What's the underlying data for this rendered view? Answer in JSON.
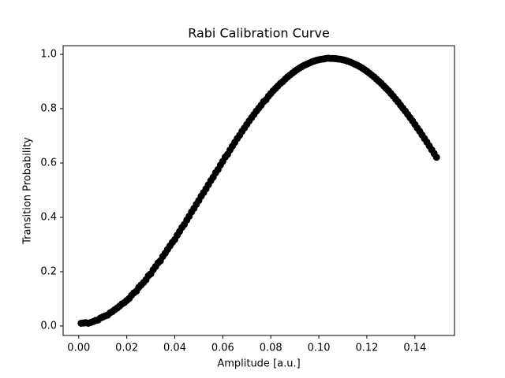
{
  "chart_data": {
    "type": "scatter",
    "title": "Rabi Calibration Curve",
    "xlabel": "Amplitude [a.u.]",
    "ylabel": "Transition Probability",
    "x": [
      0.001,
      0.002,
      0.003,
      0.004,
      0.005,
      0.006,
      0.007,
      0.008,
      0.009,
      0.01,
      0.011,
      0.012,
      0.013,
      0.014,
      0.015,
      0.016,
      0.017,
      0.018,
      0.019,
      0.02,
      0.021,
      0.022,
      0.023,
      0.024,
      0.025,
      0.026,
      0.027,
      0.028,
      0.029,
      0.03,
      0.031,
      0.032,
      0.033,
      0.034,
      0.035,
      0.036,
      0.037,
      0.038,
      0.039,
      0.04,
      0.041,
      0.042,
      0.043,
      0.044,
      0.045,
      0.046,
      0.047,
      0.048,
      0.049,
      0.05,
      0.051,
      0.052,
      0.053,
      0.054,
      0.055,
      0.056,
      0.057,
      0.058,
      0.059,
      0.06,
      0.061,
      0.062,
      0.063,
      0.064,
      0.065,
      0.066,
      0.067,
      0.068,
      0.069,
      0.07,
      0.071,
      0.072,
      0.073,
      0.074,
      0.075,
      0.076,
      0.077,
      0.078,
      0.079,
      0.08,
      0.081,
      0.082,
      0.083,
      0.084,
      0.085,
      0.086,
      0.087,
      0.088,
      0.089,
      0.09,
      0.091,
      0.092,
      0.093,
      0.094,
      0.095,
      0.096,
      0.097,
      0.098,
      0.099,
      0.1,
      0.101,
      0.102,
      0.103,
      0.104,
      0.105,
      0.106,
      0.107,
      0.108,
      0.109,
      0.11,
      0.111,
      0.112,
      0.113,
      0.114,
      0.115,
      0.116,
      0.117,
      0.118,
      0.119,
      0.12,
      0.121,
      0.122,
      0.123,
      0.124,
      0.125,
      0.126,
      0.127,
      0.128,
      0.129,
      0.13,
      0.131,
      0.132,
      0.133,
      0.134,
      0.135,
      0.136,
      0.137,
      0.138,
      0.139,
      0.14,
      0.141,
      0.142,
      0.143,
      0.144,
      0.145,
      0.146,
      0.147,
      0.148,
      0.149
    ],
    "values": [
      0.01,
      0.011,
      0.012,
      0.01,
      0.013,
      0.016,
      0.02,
      0.022,
      0.029,
      0.033,
      0.037,
      0.04,
      0.048,
      0.053,
      0.06,
      0.066,
      0.073,
      0.081,
      0.086,
      0.094,
      0.101,
      0.113,
      0.122,
      0.128,
      0.142,
      0.151,
      0.16,
      0.17,
      0.185,
      0.192,
      0.207,
      0.219,
      0.232,
      0.24,
      0.256,
      0.268,
      0.282,
      0.295,
      0.308,
      0.318,
      0.334,
      0.348,
      0.363,
      0.374,
      0.39,
      0.404,
      0.42,
      0.433,
      0.448,
      0.462,
      0.478,
      0.491,
      0.505,
      0.52,
      0.535,
      0.548,
      0.564,
      0.576,
      0.592,
      0.606,
      0.622,
      0.632,
      0.648,
      0.662,
      0.676,
      0.69,
      0.702,
      0.717,
      0.729,
      0.742,
      0.755,
      0.767,
      0.779,
      0.791,
      0.802,
      0.813,
      0.826,
      0.833,
      0.846,
      0.856,
      0.866,
      0.875,
      0.884,
      0.893,
      0.9,
      0.909,
      0.917,
      0.924,
      0.931,
      0.938,
      0.944,
      0.95,
      0.955,
      0.96,
      0.964,
      0.968,
      0.972,
      0.975,
      0.978,
      0.98,
      0.982,
      0.983,
      0.985,
      0.986,
      0.985,
      0.985,
      0.984,
      0.983,
      0.982,
      0.98,
      0.978,
      0.975,
      0.972,
      0.968,
      0.964,
      0.96,
      0.955,
      0.95,
      0.944,
      0.938,
      0.931,
      0.924,
      0.917,
      0.909,
      0.901,
      0.893,
      0.884,
      0.875,
      0.866,
      0.856,
      0.846,
      0.835,
      0.825,
      0.813,
      0.802,
      0.791,
      0.779,
      0.767,
      0.755,
      0.742,
      0.729,
      0.717,
      0.703,
      0.69,
      0.677,
      0.663,
      0.649,
      0.635,
      0.621
    ],
    "color": "#000000",
    "xlim": [
      -0.0065,
      0.1565
    ],
    "ylim": [
      -0.035,
      1.032
    ],
    "xticks": [
      {
        "value": 0,
        "label": "0.00"
      },
      0.02,
      0.04,
      0.06,
      0.08,
      {
        "value": 0.1,
        "label": "0.10"
      },
      0.12,
      0.14
    ],
    "yticks": [
      {
        "value": 0,
        "label": "0.0"
      },
      0.2,
      0.4,
      0.6,
      0.8,
      {
        "value": 1,
        "label": "1.0"
      }
    ]
  }
}
